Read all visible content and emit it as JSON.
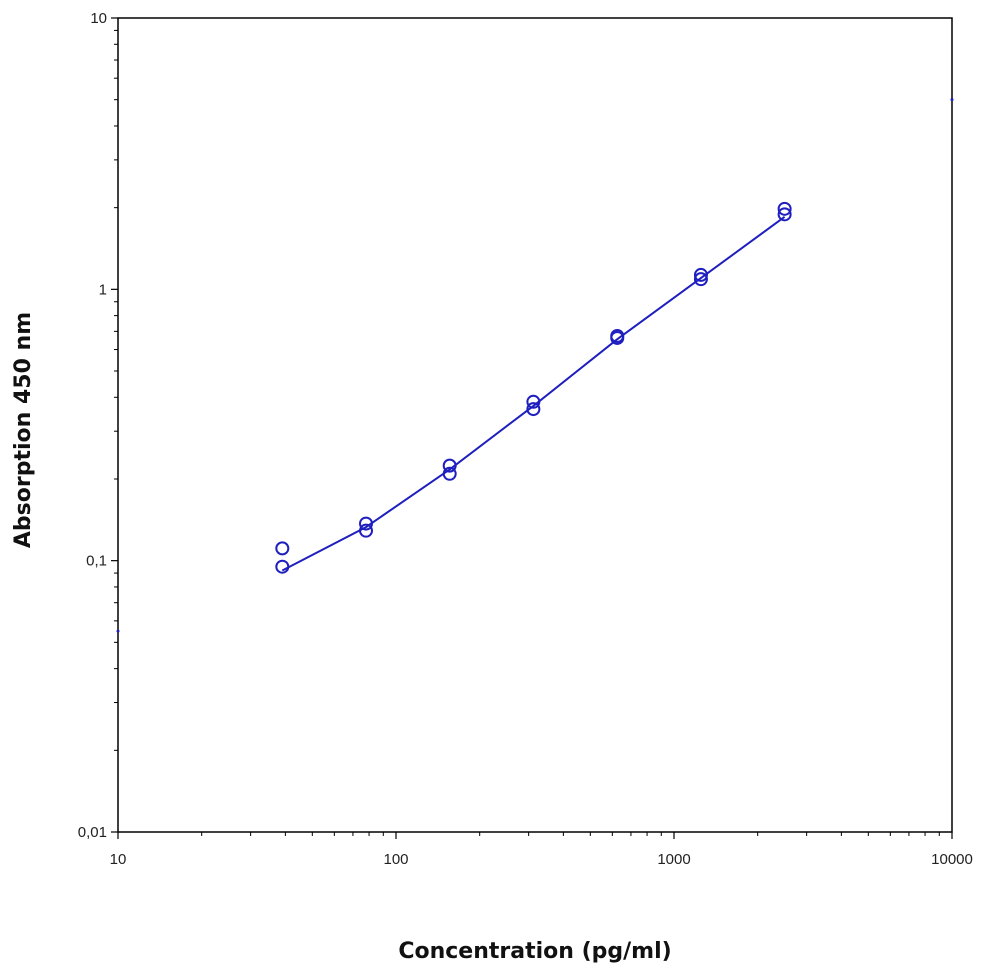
{
  "chart_data": {
    "type": "scatter",
    "xlabel": "Concentration (pg/ml)",
    "ylabel": "Absorption 450 nm",
    "xscale": "log",
    "yscale": "log",
    "xlim": [
      10,
      10000
    ],
    "ylim": [
      0.01,
      10
    ],
    "x_ticks": [
      {
        "value": 10,
        "label": "10"
      },
      {
        "value": 100,
        "label": "100"
      },
      {
        "value": 1000,
        "label": "1000"
      },
      {
        "value": 10000,
        "label": "10000"
      }
    ],
    "y_ticks": [
      {
        "value": 0.01,
        "label": "0,01"
      },
      {
        "value": 0.1,
        "label": "0,1"
      },
      {
        "value": 1,
        "label": "1"
      },
      {
        "value": 10,
        "label": "10"
      }
    ],
    "grid": false,
    "color": "#1f1fbf",
    "points": [
      {
        "x": 39,
        "y": 0.111
      },
      {
        "x": 39,
        "y": 0.095
      },
      {
        "x": 78,
        "y": 0.137
      },
      {
        "x": 78,
        "y": 0.129
      },
      {
        "x": 156,
        "y": 0.224
      },
      {
        "x": 156,
        "y": 0.209
      },
      {
        "x": 312,
        "y": 0.385
      },
      {
        "x": 312,
        "y": 0.362
      },
      {
        "x": 625,
        "y": 0.673
      },
      {
        "x": 625,
        "y": 0.662
      },
      {
        "x": 1250,
        "y": 1.13
      },
      {
        "x": 1250,
        "y": 1.09
      },
      {
        "x": 2500,
        "y": 1.98
      },
      {
        "x": 2500,
        "y": 1.89
      }
    ],
    "fit_line": [
      {
        "x": 39,
        "y": 0.092
      },
      {
        "x": 78,
        "y": 0.133
      },
      {
        "x": 156,
        "y": 0.217
      },
      {
        "x": 312,
        "y": 0.372
      },
      {
        "x": 625,
        "y": 0.655
      },
      {
        "x": 1250,
        "y": 1.1
      },
      {
        "x": 2500,
        "y": 1.85
      }
    ],
    "edge_markers": [
      {
        "x": 10,
        "y": 0.055
      },
      {
        "x": 10000,
        "y": 5
      }
    ]
  }
}
